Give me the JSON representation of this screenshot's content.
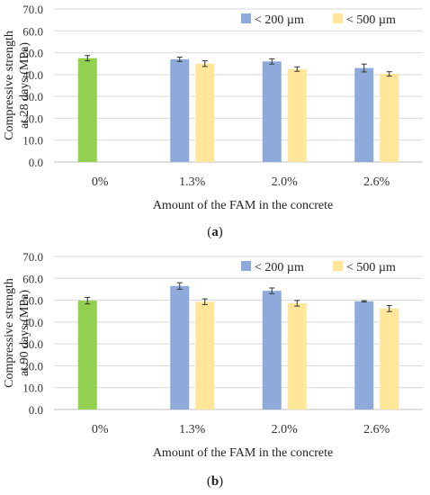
{
  "chart_data": [
    {
      "type": "bar",
      "panel_label": "a",
      "ylabel": "Compressive strength at 28 days (MPa)",
      "ylabel_lines": [
        "Compressive strength",
        "at 28 days (MPa)"
      ],
      "xlabel": "Amount of the FAM in the concrete",
      "categories": [
        "0%",
        "1.3%",
        "2.0%",
        "2.6%"
      ],
      "ylim": [
        0,
        70
      ],
      "yticks": [
        "0.0",
        "10.0",
        "20.0",
        "30.0",
        "40.0",
        "50.0",
        "60.0",
        "70.0"
      ],
      "grid": true,
      "legend_position": "top-right",
      "reference": {
        "category": "0%",
        "value": 47.5,
        "error": 1.2,
        "color": "#92d050"
      },
      "series": [
        {
          "name": "< 200 µm",
          "color": "#8eaadb",
          "values": [
            null,
            47.0,
            46.0,
            43.0
          ],
          "errors": [
            null,
            1.0,
            1.2,
            1.8
          ]
        },
        {
          "name": "< 500 µm",
          "color": "#ffe699",
          "values": [
            null,
            45.0,
            42.5,
            40.3
          ],
          "errors": [
            null,
            1.3,
            1.0,
            1.0
          ]
        }
      ]
    },
    {
      "type": "bar",
      "panel_label": "b",
      "ylabel": "Compressive strength at 90 days (MPa)",
      "ylabel_lines": [
        "Compressive strength",
        "at 90 days (MPa)"
      ],
      "xlabel": "Amount of the FAM in the concrete",
      "categories": [
        "0%",
        "1.3%",
        "2.0%",
        "2.6%"
      ],
      "ylim": [
        0,
        70
      ],
      "yticks": [
        "0.0",
        "10.0",
        "20.0",
        "30.0",
        "40.0",
        "50.0",
        "60.0",
        "70.0"
      ],
      "grid": true,
      "legend_position": "top-right",
      "reference": {
        "category": "0%",
        "value": 49.8,
        "error": 1.5,
        "color": "#92d050"
      },
      "series": [
        {
          "name": "< 200 µm",
          "color": "#8eaadb",
          "values": [
            null,
            56.5,
            54.3,
            49.5
          ],
          "errors": [
            null,
            1.5,
            1.3,
            0.3
          ]
        },
        {
          "name": "< 500 µm",
          "color": "#ffe699",
          "values": [
            null,
            49.3,
            48.6,
            46.2
          ],
          "errors": [
            null,
            1.3,
            1.3,
            1.4
          ]
        }
      ]
    }
  ]
}
